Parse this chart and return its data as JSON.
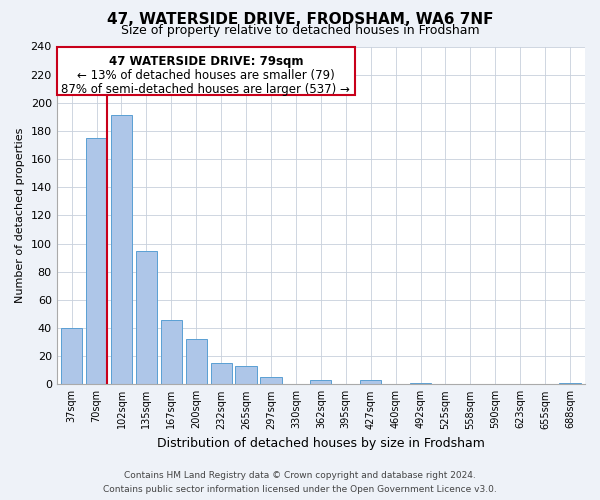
{
  "title": "47, WATERSIDE DRIVE, FRODSHAM, WA6 7NF",
  "subtitle": "Size of property relative to detached houses in Frodsham",
  "xlabel": "Distribution of detached houses by size in Frodsham",
  "ylabel": "Number of detached properties",
  "bar_labels": [
    "37sqm",
    "70sqm",
    "102sqm",
    "135sqm",
    "167sqm",
    "200sqm",
    "232sqm",
    "265sqm",
    "297sqm",
    "330sqm",
    "362sqm",
    "395sqm",
    "427sqm",
    "460sqm",
    "492sqm",
    "525sqm",
    "558sqm",
    "590sqm",
    "623sqm",
    "655sqm",
    "688sqm"
  ],
  "bar_values": [
    40,
    175,
    191,
    95,
    46,
    32,
    15,
    13,
    5,
    0,
    3,
    0,
    3,
    0,
    1,
    0,
    0,
    0,
    0,
    0,
    1
  ],
  "bar_color": "#aec6e8",
  "bar_edge_color": "#5a9fd4",
  "highlight_color": "#c8001a",
  "highlight_bar_index": 1,
  "ylim": [
    0,
    240
  ],
  "yticks": [
    0,
    20,
    40,
    60,
    80,
    100,
    120,
    140,
    160,
    180,
    200,
    220,
    240
  ],
  "annotation_line1": "47 WATERSIDE DRIVE: 79sqm",
  "annotation_line2": "← 13% of detached houses are smaller (79)",
  "annotation_line3": "87% of semi-detached houses are larger (537) →",
  "footer_line1": "Contains HM Land Registry data © Crown copyright and database right 2024.",
  "footer_line2": "Contains public sector information licensed under the Open Government Licence v3.0.",
  "bg_color": "#eef2f8",
  "plot_bg_color": "#ffffff",
  "grid_color": "#c8d0dc"
}
